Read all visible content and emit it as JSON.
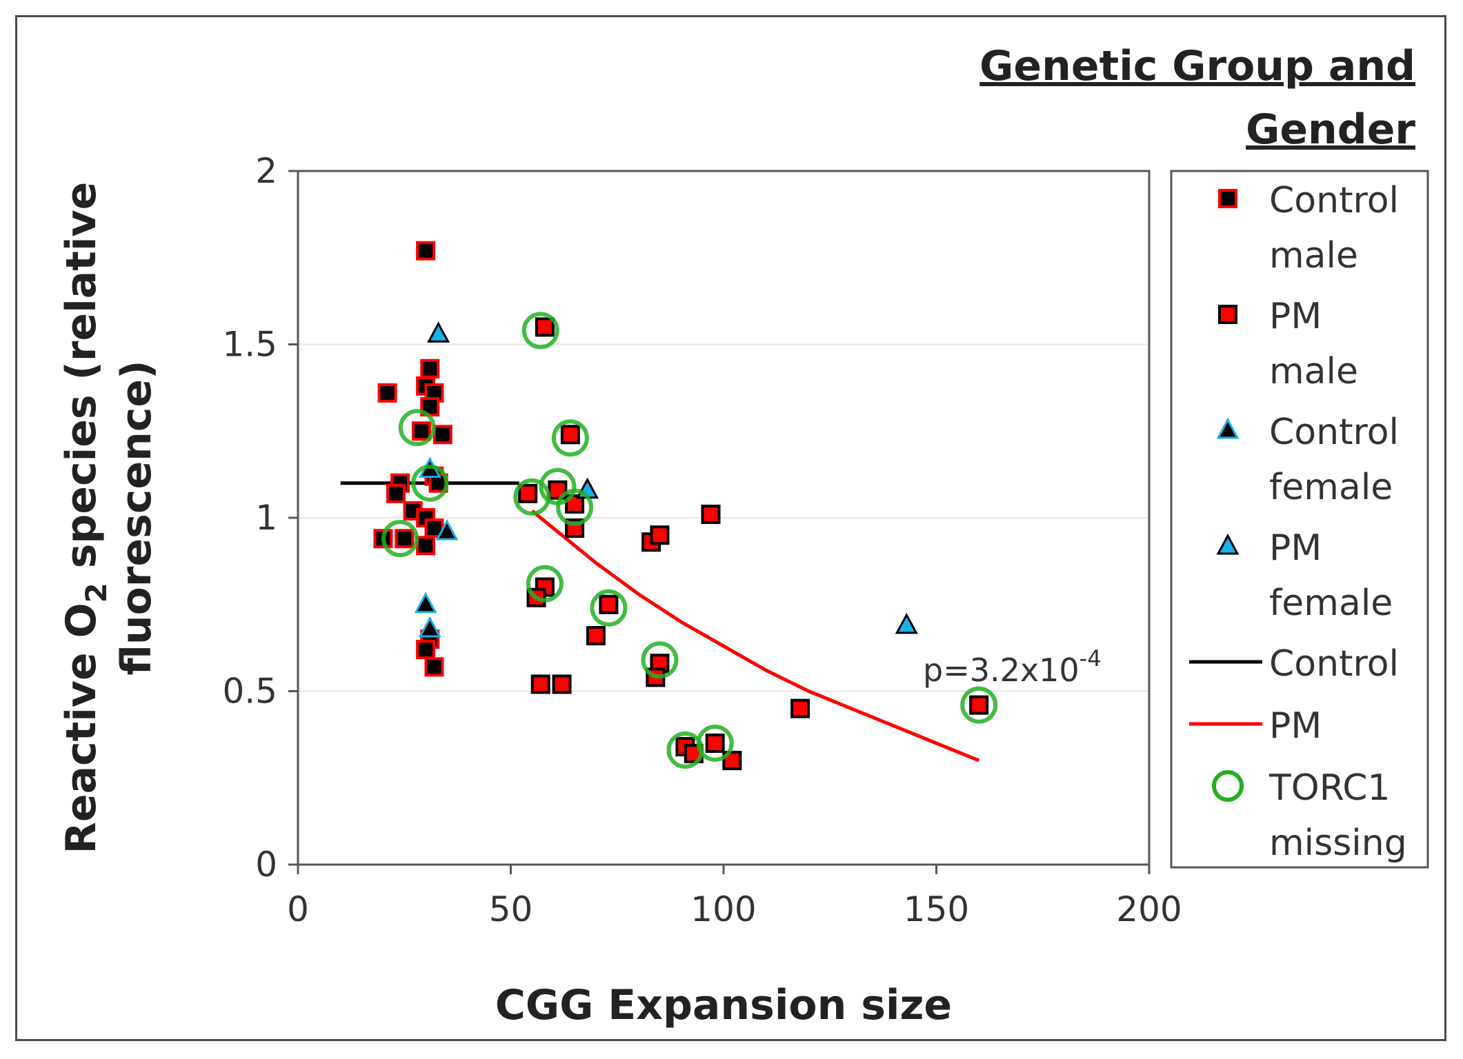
{
  "chart_data": {
    "type": "scatter",
    "xlabel": "CGG Expansion size",
    "ylabel_parts": [
      "Reactive O",
      "2",
      " species (relative",
      "fluorescence)"
    ],
    "xlim": [
      0,
      200
    ],
    "ylim": [
      0,
      2
    ],
    "x_ticks": [
      0,
      50,
      100,
      150,
      200
    ],
    "y_ticks": [
      0,
      0.5,
      1,
      1.5,
      2
    ],
    "x_tick_labels": [
      "0",
      "50",
      "100",
      "150",
      "200"
    ],
    "y_tick_labels": [
      "0",
      "0.5",
      "1",
      "1.5",
      "2"
    ],
    "grid": "horizontal",
    "legend": {
      "title_lines": [
        "Genetic Group and",
        "Gender"
      ],
      "placement": "right",
      "entries": [
        {
          "lines": [
            "Control",
            "male"
          ],
          "symbol": "square",
          "fill": "#000000",
          "stroke": "#ff0000"
        },
        {
          "lines": [
            "PM",
            "male"
          ],
          "symbol": "square",
          "fill": "#ff0000",
          "stroke": "#000000"
        },
        {
          "lines": [
            "Control",
            "female"
          ],
          "symbol": "triangle",
          "fill": "#000000",
          "stroke": "#1ab0e8"
        },
        {
          "lines": [
            "PM",
            "female"
          ],
          "symbol": "triangle",
          "fill": "#1ab0e8",
          "stroke": "#000000"
        },
        {
          "lines": [
            "Control"
          ],
          "symbol": "line",
          "color": "#000000"
        },
        {
          "lines": [
            "PM"
          ],
          "symbol": "line",
          "color": "#ff0000"
        },
        {
          "lines": [
            "TORC1",
            "missing"
          ],
          "symbol": "circle",
          "color": "#22b022"
        }
      ]
    },
    "annotation": {
      "text": "p=3.2x10",
      "sup": "-4",
      "x": 148,
      "y": 0.54
    },
    "colors": {
      "control": "#000000",
      "pm": "#ff0000",
      "female": "#1ab0e8",
      "torc1": "#22b022"
    },
    "series": [
      {
        "name": "Control male",
        "marker": "square",
        "points": [
          [
            30,
            1.77
          ],
          [
            21,
            1.36
          ],
          [
            31,
            1.43
          ],
          [
            30,
            1.38
          ],
          [
            32,
            1.36
          ],
          [
            31,
            1.32
          ],
          [
            29,
            1.25
          ],
          [
            34,
            1.24
          ],
          [
            32,
            1.12
          ],
          [
            24,
            1.1
          ],
          [
            33,
            1.1
          ],
          [
            23,
            1.07
          ],
          [
            27,
            1.02
          ],
          [
            30,
            1.0
          ],
          [
            32,
            0.97
          ],
          [
            20,
            0.94
          ],
          [
            25,
            0.94
          ],
          [
            30,
            0.92
          ],
          [
            31,
            0.65
          ],
          [
            30,
            0.62
          ],
          [
            32,
            0.57
          ]
        ]
      },
      {
        "name": "PM male",
        "marker": "square",
        "points": [
          [
            58,
            1.55
          ],
          [
            64,
            1.24
          ],
          [
            54,
            1.07
          ],
          [
            61,
            1.08
          ],
          [
            65,
            1.04
          ],
          [
            65,
            0.97
          ],
          [
            97,
            1.01
          ],
          [
            83,
            0.93
          ],
          [
            85,
            0.95
          ],
          [
            58,
            0.8
          ],
          [
            56,
            0.77
          ],
          [
            73,
            0.75
          ],
          [
            70,
            0.66
          ],
          [
            85,
            0.58
          ],
          [
            84,
            0.54
          ],
          [
            57,
            0.52
          ],
          [
            62,
            0.52
          ],
          [
            118,
            0.45
          ],
          [
            160,
            0.46
          ],
          [
            91,
            0.34
          ],
          [
            98,
            0.35
          ],
          [
            93,
            0.32
          ],
          [
            102,
            0.3
          ]
        ]
      },
      {
        "name": "Control female",
        "marker": "triangle",
        "points": [
          [
            31,
            1.14
          ],
          [
            30,
            0.75
          ],
          [
            31,
            0.68
          ],
          [
            35,
            0.96
          ]
        ]
      },
      {
        "name": "PM female",
        "marker": "triangle",
        "points": [
          [
            33,
            1.53
          ],
          [
            68,
            1.08
          ],
          [
            143,
            0.69
          ]
        ]
      },
      {
        "name": "TORC1 missing",
        "marker": "circle",
        "points": [
          [
            28,
            1.26
          ],
          [
            31,
            1.1
          ],
          [
            24,
            0.94
          ],
          [
            57,
            1.54
          ],
          [
            64,
            1.23
          ],
          [
            55,
            1.06
          ],
          [
            61,
            1.09
          ],
          [
            65,
            1.03
          ],
          [
            58,
            0.81
          ],
          [
            73,
            0.74
          ],
          [
            85,
            0.59
          ],
          [
            160,
            0.46
          ],
          [
            91,
            0.33
          ],
          [
            98,
            0.35
          ]
        ]
      }
    ],
    "fit_lines": [
      {
        "name": "Control",
        "color": "#000000",
        "points": [
          [
            10,
            1.1
          ],
          [
            52,
            1.1
          ]
        ]
      },
      {
        "name": "PM",
        "color": "#ff0000",
        "points": [
          [
            55,
            1.02
          ],
          [
            60,
            0.97
          ],
          [
            70,
            0.87
          ],
          [
            80,
            0.78
          ],
          [
            90,
            0.7
          ],
          [
            100,
            0.63
          ],
          [
            110,
            0.56
          ],
          [
            120,
            0.5
          ],
          [
            130,
            0.45
          ],
          [
            140,
            0.4
          ],
          [
            150,
            0.35
          ],
          [
            160,
            0.3
          ]
        ]
      }
    ]
  }
}
